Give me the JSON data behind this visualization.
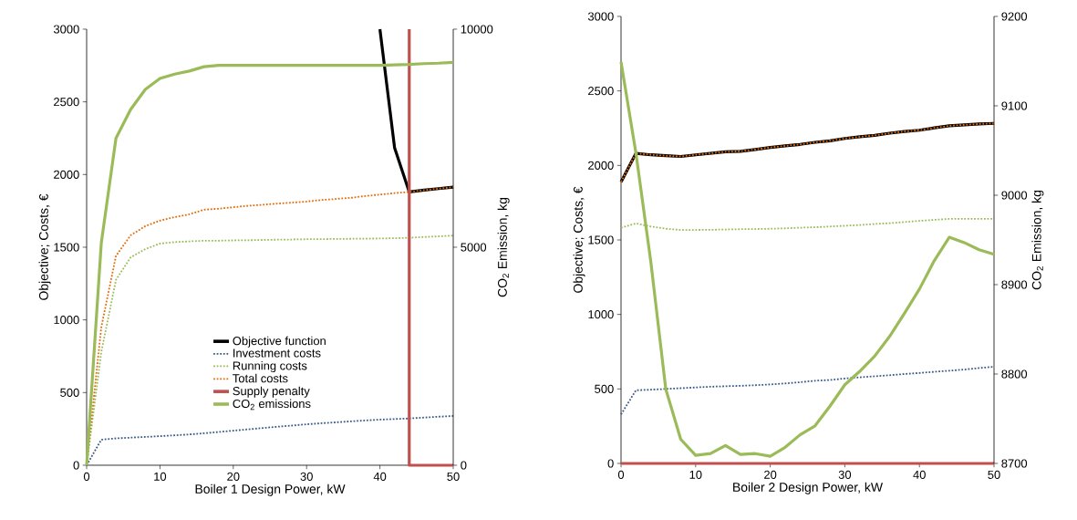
{
  "chart_data": [
    {
      "type": "line",
      "xlabel": "Boiler 1 Design Power, kW",
      "ylabel": "Objective; Costs, €",
      "y2label": "CO$_{2}$ Emission, kg",
      "x": [
        0,
        2,
        4,
        6,
        8,
        10,
        12,
        14,
        16,
        18,
        20,
        22,
        24,
        26,
        28,
        30,
        32,
        34,
        36,
        38,
        40,
        42,
        44,
        46,
        48,
        50
      ],
      "xlim": [
        0,
        50
      ],
      "xticks": [
        0,
        10,
        20,
        30,
        40,
        50
      ],
      "ylim": [
        0,
        3000
      ],
      "yticks": [
        0,
        500,
        1000,
        1500,
        2000,
        2500,
        3000
      ],
      "y2lim": [
        0,
        10000
      ],
      "y2ticks": [
        0,
        5000,
        10000
      ],
      "grid": false,
      "legend": "bottom",
      "marker": "none",
      "series": [
        {
          "name": "Objective function",
          "color": "#000000",
          "line_style": "solid",
          "x": [
            40,
            42,
            44,
            46,
            48,
            50
          ],
          "values": [
            3000,
            2184,
            1880,
            1893,
            1903,
            1913
          ]
        },
        {
          "name": "Investment costs",
          "color": "#3b5a8a",
          "line_style": "dotted",
          "values": [
            0,
            176,
            185,
            190,
            195,
            200,
            206,
            212,
            220,
            229,
            238,
            247,
            256,
            265,
            273,
            282,
            289,
            295,
            302,
            308,
            314,
            318,
            322,
            328,
            334,
            339
          ]
        },
        {
          "name": "Running costs",
          "color": "#9bbb59",
          "line_style": "dotted",
          "values": [
            0,
            780,
            1275,
            1430,
            1487,
            1525,
            1535,
            1540,
            1545,
            1545,
            1547,
            1548,
            1550,
            1552,
            1553,
            1555,
            1556,
            1557,
            1558,
            1559,
            1560,
            1562,
            1565,
            1570,
            1575,
            1580
          ]
        },
        {
          "name": "Total costs",
          "color": "#e36c09",
          "line_style": "dotted",
          "values": [
            0,
            950,
            1440,
            1582,
            1645,
            1683,
            1707,
            1726,
            1758,
            1765,
            1775,
            1785,
            1792,
            1800,
            1807,
            1814,
            1825,
            1832,
            1840,
            1852,
            1862,
            1872,
            1880,
            1893,
            1903,
            1913
          ]
        },
        {
          "name": "Supply penalty",
          "color": "#c0504d",
          "line_style": "solid",
          "x": [
            44,
            44,
            50
          ],
          "values": [
            3000,
            0,
            0
          ]
        },
        {
          "name": "CO$_{2}$ emissions",
          "color": "#9bbb59",
          "line_style": "solid",
          "axis": "y2",
          "values": [
            0,
            5100,
            7500,
            8160,
            8620,
            8870,
            8970,
            9040,
            9140,
            9170,
            9170,
            9170,
            9170,
            9170,
            9170,
            9170,
            9170,
            9170,
            9170,
            9170,
            9170,
            9180,
            9190,
            9210,
            9220,
            9240
          ]
        }
      ]
    },
    {
      "type": "line",
      "xlabel": "Boiler 2 Design Power, kW",
      "ylabel": "Objective; Costs, €",
      "y2label": "CO$_{2}$ Emission, kg",
      "x": [
        0,
        2,
        4,
        6,
        8,
        10,
        12,
        14,
        16,
        18,
        20,
        22,
        24,
        26,
        28,
        30,
        32,
        34,
        36,
        38,
        40,
        42,
        44,
        46,
        48,
        50
      ],
      "xlim": [
        0,
        50
      ],
      "xticks": [
        0,
        10,
        20,
        30,
        40,
        50
      ],
      "ylim": [
        0,
        3000
      ],
      "yticks": [
        0,
        500,
        1000,
        1500,
        2000,
        2500,
        3000
      ],
      "y2lim": [
        8700,
        9200
      ],
      "y2ticks": [
        8700,
        8800,
        8900,
        9000,
        9100,
        9200
      ],
      "grid": false,
      "legend": false,
      "marker": "none",
      "series": [
        {
          "color": "#000000",
          "line_style": "solid",
          "values": [
            1889,
            2081,
            2071,
            2065,
            2060,
            2071,
            2081,
            2091,
            2095,
            2107,
            2121,
            2131,
            2141,
            2155,
            2165,
            2181,
            2192,
            2202,
            2216,
            2228,
            2236,
            2252,
            2266,
            2272,
            2278,
            2282
          ]
        },
        {
          "color": "#3b5a8a",
          "line_style": "dotted",
          "values": [
            329,
            491,
            495,
            500,
            505,
            510,
            515,
            518,
            521,
            525,
            530,
            537,
            545,
            555,
            560,
            570,
            578,
            585,
            592,
            600,
            607,
            615,
            622,
            630,
            640,
            649
          ]
        },
        {
          "color": "#9bbb59",
          "line_style": "dotted",
          "values": [
            1581,
            1611,
            1590,
            1575,
            1567,
            1567,
            1568,
            1570,
            1572,
            1573,
            1575,
            1578,
            1582,
            1585,
            1590,
            1595,
            1600,
            1607,
            1612,
            1620,
            1628,
            1635,
            1641,
            1641,
            1641,
            1641
          ]
        },
        {
          "color": "#e36c09",
          "line_style": "dotted",
          "values": [
            1889,
            2081,
            2071,
            2065,
            2060,
            2071,
            2081,
            2091,
            2095,
            2107,
            2121,
            2131,
            2141,
            2155,
            2165,
            2181,
            2192,
            2202,
            2216,
            2228,
            2236,
            2252,
            2266,
            2272,
            2278,
            2282
          ]
        },
        {
          "color": "#c0504d",
          "line_style": "solid",
          "values": [
            0,
            0,
            0,
            0,
            0,
            0,
            0,
            0,
            0,
            0,
            0,
            0,
            0,
            0,
            0,
            0,
            0,
            0,
            0,
            0,
            0,
            0,
            0,
            0,
            0,
            0
          ]
        },
        {
          "color": "#9bbb59",
          "line_style": "solid",
          "axis": "y2",
          "values": [
            9149,
            9047,
            8925,
            8783,
            8727,
            8709,
            8711,
            8720,
            8710,
            8711,
            8708,
            8718,
            8732,
            8742,
            8764,
            8788,
            8803,
            8820,
            8842,
            8868,
            8895,
            8927,
            8953,
            8947,
            8939,
            8934
          ]
        }
      ]
    }
  ]
}
